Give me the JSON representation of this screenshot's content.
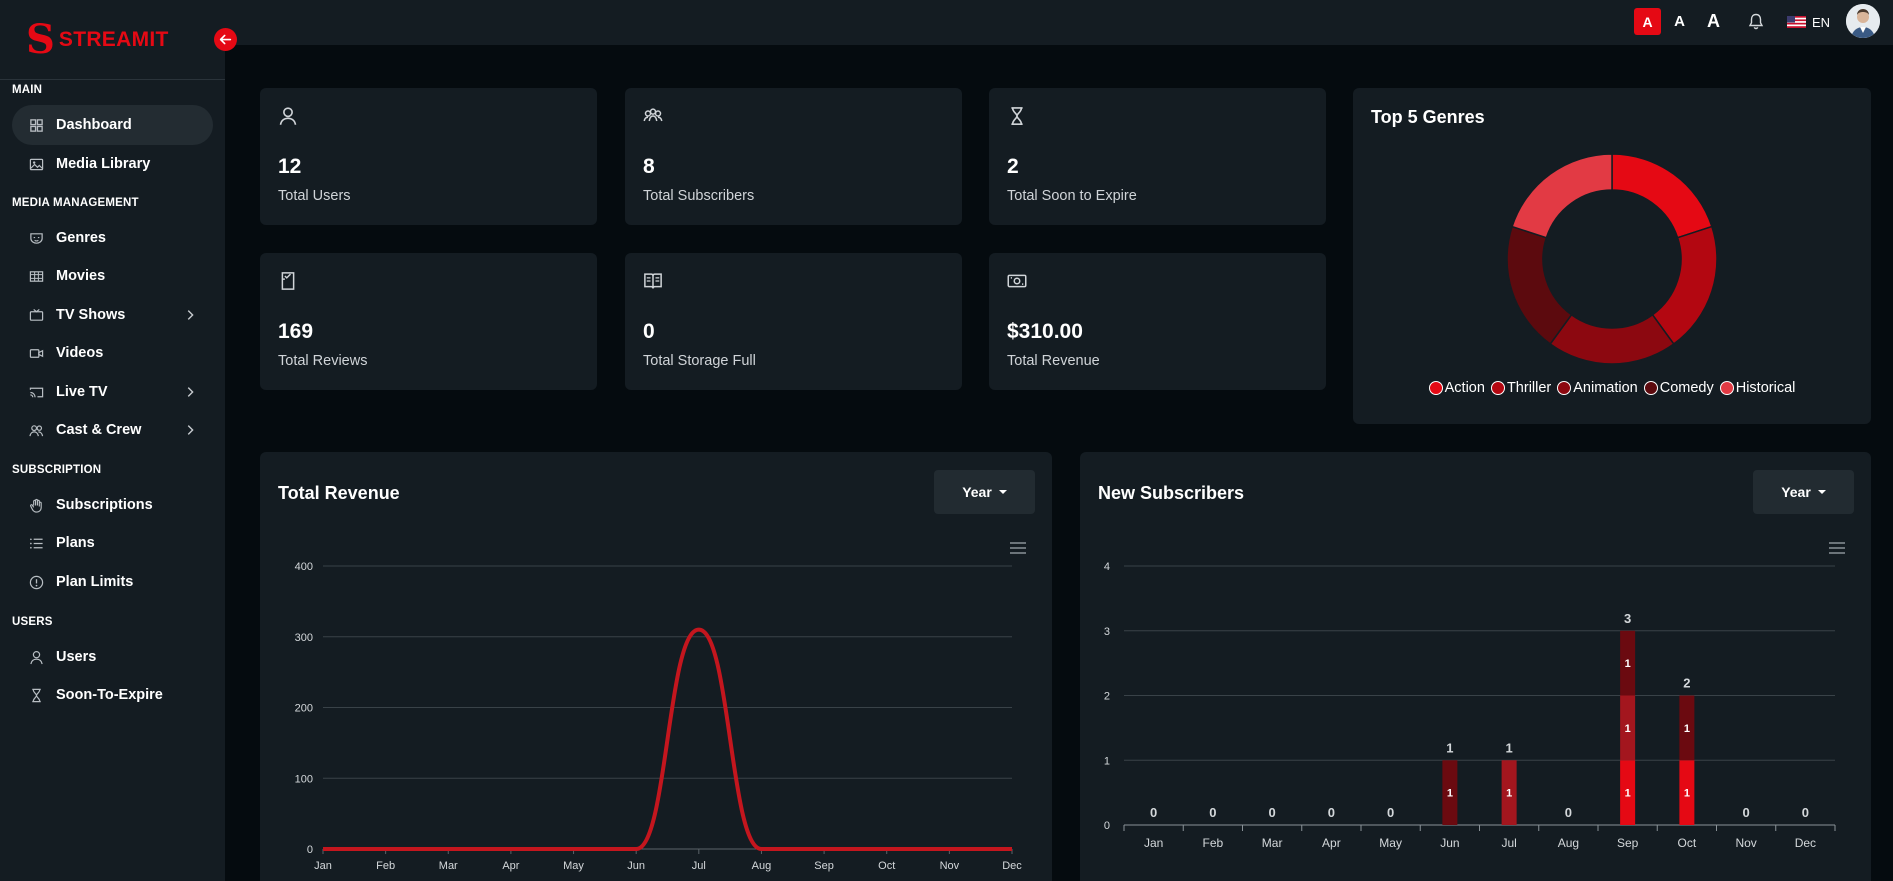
{
  "brand": {
    "logo_letter": "S",
    "name": "STREAMIT"
  },
  "sidebar": {
    "sections": [
      {
        "title": "MAIN",
        "items": [
          {
            "label": "Dashboard",
            "icon": "grid-icon",
            "active": true
          },
          {
            "label": "Media Library",
            "icon": "image-icon"
          }
        ]
      },
      {
        "title": "MEDIA MANAGEMENT",
        "items": [
          {
            "label": "Genres",
            "icon": "mask-icon"
          },
          {
            "label": "Movies",
            "icon": "film-icon"
          },
          {
            "label": "TV Shows",
            "icon": "tv-icon",
            "has_children": true
          },
          {
            "label": "Videos",
            "icon": "video-icon"
          },
          {
            "label": "Live TV",
            "icon": "cast-icon",
            "has_children": true
          },
          {
            "label": "Cast & Crew",
            "icon": "people-icon",
            "has_children": true
          }
        ]
      },
      {
        "title": "SUBSCRIPTION",
        "items": [
          {
            "label": "Subscriptions",
            "icon": "hand-icon"
          },
          {
            "label": "Plans",
            "icon": "list-icon"
          },
          {
            "label": "Plan Limits",
            "icon": "alert-circle-icon"
          }
        ]
      },
      {
        "title": "USERS",
        "items": [
          {
            "label": "Users",
            "icon": "user-icon"
          },
          {
            "label": "Soon-To-Expire",
            "icon": "hourglass-icon"
          }
        ]
      }
    ]
  },
  "topbar": {
    "font_sizes": [
      "A",
      "A",
      "A"
    ],
    "language": "EN"
  },
  "stats": [
    {
      "value": "12",
      "label": "Total Users",
      "icon": "user-icon"
    },
    {
      "value": "8",
      "label": "Total Subscribers",
      "icon": "group-icon"
    },
    {
      "value": "2",
      "label": "Total Soon to Expire",
      "icon": "hourglass-icon"
    },
    {
      "value": "169",
      "label": "Total Reviews",
      "icon": "review-icon"
    },
    {
      "value": "0",
      "label": "Total Storage Full",
      "icon": "book-icon"
    },
    {
      "value": "$310.00",
      "label": "Total Revenue",
      "icon": "money-icon"
    }
  ],
  "genres_card": {
    "title": "Top 5 Genres"
  },
  "revenue_card": {
    "title": "Total Revenue",
    "filter": "Year"
  },
  "subscribers_card": {
    "title": "New Subscribers",
    "filter": "Year"
  },
  "chart_data": [
    {
      "type": "pie",
      "title": "Top 5 Genres",
      "labels": [
        "Action",
        "Thriller",
        "Animation",
        "Comedy",
        "Historical"
      ],
      "values": [
        20,
        20,
        20,
        20,
        20
      ],
      "colors": [
        "#e50914",
        "#b30711",
        "#8c0810",
        "#5c0a0e",
        "#e23a44"
      ]
    },
    {
      "type": "line",
      "title": "Total Revenue",
      "categories": [
        "Jan",
        "Feb",
        "Mar",
        "Apr",
        "May",
        "Jun",
        "Jul",
        "Aug",
        "Sep",
        "Oct",
        "Nov",
        "Dec"
      ],
      "values": [
        0,
        0,
        0,
        0,
        0,
        0,
        310,
        0,
        0,
        0,
        0,
        0
      ],
      "ylim": [
        0,
        400
      ],
      "yticks": [
        0,
        100,
        200,
        300,
        400
      ],
      "color": "#c4161e",
      "grid": true
    },
    {
      "type": "bar",
      "title": "New Subscribers",
      "categories": [
        "Jan",
        "Feb",
        "Mar",
        "Apr",
        "May",
        "Jun",
        "Jul",
        "Aug",
        "Sep",
        "Oct",
        "Nov",
        "Dec"
      ],
      "series": [
        {
          "values": [
            0,
            0,
            0,
            0,
            0,
            0,
            0,
            0,
            1,
            1,
            0,
            0
          ],
          "color": "#e50914"
        },
        {
          "values": [
            0,
            0,
            0,
            0,
            0,
            1,
            1,
            0,
            1,
            0,
            0,
            0
          ],
          "color": "#a3161e"
        },
        {
          "values": [
            0,
            0,
            0,
            0,
            0,
            0,
            0,
            0,
            1,
            1,
            0,
            0
          ],
          "color": "#6b0a10"
        }
      ],
      "bar_color_override": {
        "Jun": "#6b0a10"
      },
      "totals": [
        0,
        0,
        0,
        0,
        0,
        1,
        1,
        0,
        3,
        2,
        0,
        0
      ],
      "ylim": [
        0,
        4
      ],
      "yticks": [
        0,
        1,
        2,
        3,
        4
      ],
      "stacked": true,
      "grid": true
    }
  ]
}
